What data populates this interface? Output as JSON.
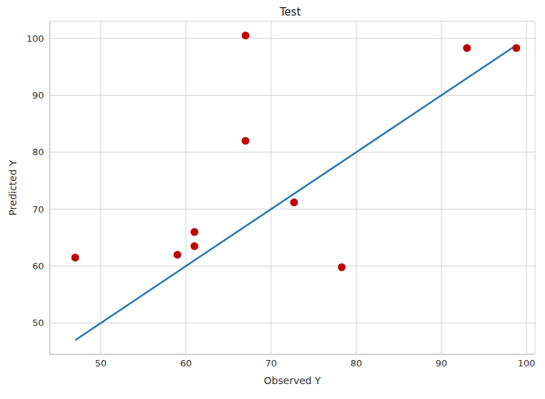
{
  "chart_data": {
    "type": "scatter",
    "title": "Test",
    "x_label": "Observed Y",
    "y_label": "Predicted Y",
    "xlim": [
      44,
      101
    ],
    "xticks": [
      50,
      60,
      70,
      80,
      90,
      100
    ],
    "ylim": [
      44.5,
      103
    ],
    "yticks": [
      50,
      60,
      70,
      80,
      90,
      100
    ],
    "grid": true,
    "series": [
      {
        "type": "scatter",
        "marker": "circle",
        "color": "#c00000",
        "x": [
          47,
          59,
          61,
          61,
          67,
          67,
          72.7,
          78.3,
          93,
          98.8
        ],
        "values": [
          61.5,
          62,
          66,
          63.5,
          100.5,
          82,
          71.2,
          59.8,
          98.3,
          98.3
        ]
      },
      {
        "type": "line",
        "line_style": "solid",
        "color": "#1f77b4",
        "x": [
          47,
          98.8
        ],
        "values": [
          47,
          98.8
        ]
      }
    ]
  }
}
